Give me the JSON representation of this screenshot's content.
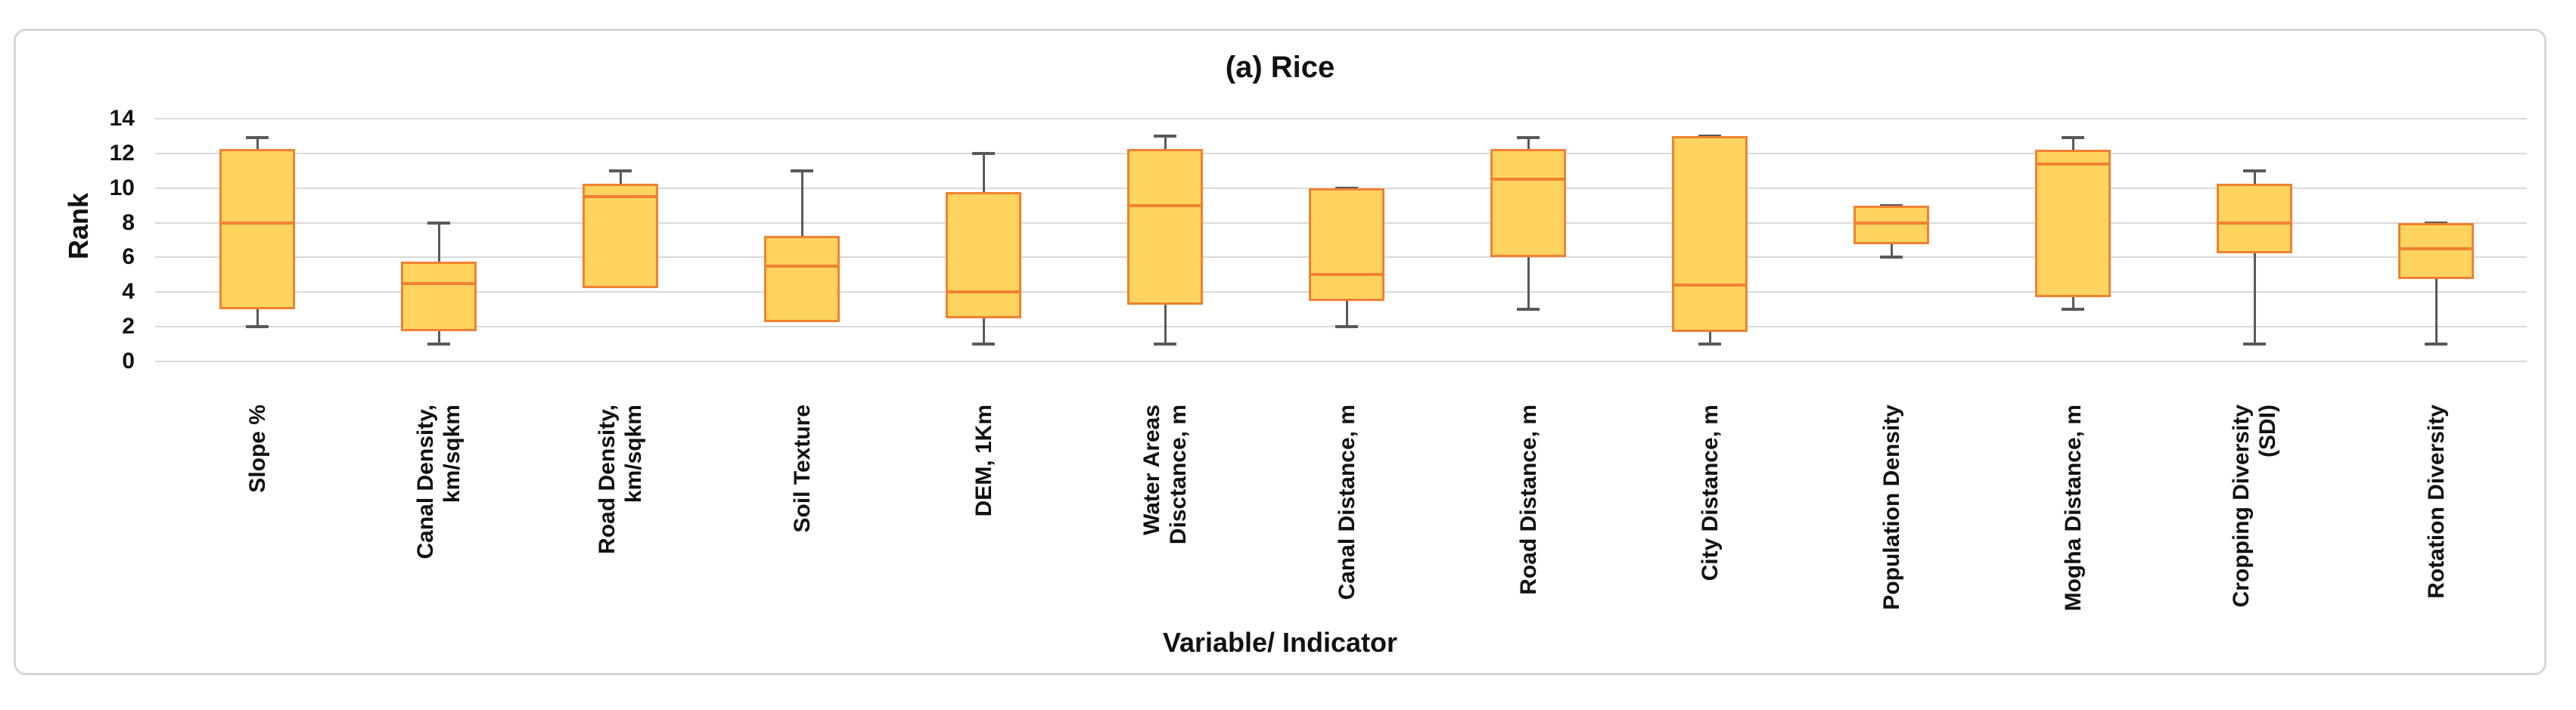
{
  "title": "(a) Rice",
  "y_axis": {
    "label": "Rank",
    "min": 0,
    "max": 14,
    "tick_step": 2,
    "ticks": [
      "0",
      "2",
      "4",
      "6",
      "8",
      "10",
      "12",
      "14"
    ]
  },
  "x_axis": {
    "label": "Variable/ Indicator"
  },
  "colors": {
    "box_fill": "#FFD45E",
    "box_border": "#F08132",
    "median": "#F08132",
    "whisker": "#595959",
    "gridline": "#D9D9D9",
    "card_border": "#D6D6D6",
    "text": "#111111",
    "background": "#FFFFFF"
  },
  "chart_data": {
    "type": "box",
    "title": "(a) Rice",
    "xlabel": "Variable/ Indicator",
    "ylabel": "Rank",
    "ylim": [
      0,
      14
    ],
    "ytick_step": 2,
    "grid": true,
    "legend": false,
    "categories": [
      "Slope %",
      "Canal Density, km/sqkm",
      "Road Density, km/sqkm",
      "Soil Texture",
      "DEM, 1Km",
      "Water Areas Disctance, m",
      "Canal Distance, m",
      "Road Distance, m",
      "City Distance, m",
      "Population Density",
      "Mogha Distance, m",
      "Cropping Diversity (SDI)",
      "Rotation Diversity"
    ],
    "boxes": [
      {
        "label_lines": [
          "Slope %"
        ],
        "min": 2,
        "q1": 3,
        "median": 8,
        "q3": 12.25,
        "max": 12.9
      },
      {
        "label_lines": [
          "Canal Density,",
          "km/sqkm"
        ],
        "min": 1,
        "q1": 1.75,
        "median": 4.5,
        "q3": 5.75,
        "max": 8
      },
      {
        "label_lines": [
          "Road Density,",
          "km/sqkm"
        ],
        "min": 4.25,
        "q1": 4.25,
        "median": 9.5,
        "q3": 10.25,
        "max": 11
      },
      {
        "label_lines": [
          "Soil Texture"
        ],
        "min": 2.25,
        "q1": 2.25,
        "median": 5.5,
        "q3": 7.25,
        "max": 11
      },
      {
        "label_lines": [
          "DEM, 1Km"
        ],
        "min": 1,
        "q1": 2.5,
        "median": 4,
        "q3": 9.75,
        "max": 12
      },
      {
        "label_lines": [
          "Water Areas",
          "Disctance, m"
        ],
        "min": 1,
        "q1": 3.25,
        "median": 9,
        "q3": 12.25,
        "max": 13
      },
      {
        "label_lines": [
          "Canal Distance, m"
        ],
        "min": 2,
        "q1": 3.5,
        "median": 5,
        "q3": 10,
        "max": 10
      },
      {
        "label_lines": [
          "Road Distance, m"
        ],
        "min": 3,
        "q1": 6,
        "median": 10.5,
        "q3": 12.25,
        "max": 12.9
      },
      {
        "label_lines": [
          "City Distance, m"
        ],
        "min": 1,
        "q1": 1.7,
        "median": 4.4,
        "q3": 13,
        "max": 13
      },
      {
        "label_lines": [
          "Population Density"
        ],
        "min": 6,
        "q1": 6.75,
        "median": 8,
        "q3": 9,
        "max": 9
      },
      {
        "label_lines": [
          "Mogha Distance, m"
        ],
        "min": 3,
        "q1": 3.7,
        "median": 11.4,
        "q3": 12.2,
        "max": 12.9
      },
      {
        "label_lines": [
          "Cropping Diversity",
          "(SDI)"
        ],
        "min": 1,
        "q1": 6.25,
        "median": 8,
        "q3": 10.25,
        "max": 11
      },
      {
        "label_lines": [
          "Rotation Diversity"
        ],
        "min": 1,
        "q1": 4.75,
        "median": 6.5,
        "q3": 8,
        "max": 8
      }
    ]
  }
}
